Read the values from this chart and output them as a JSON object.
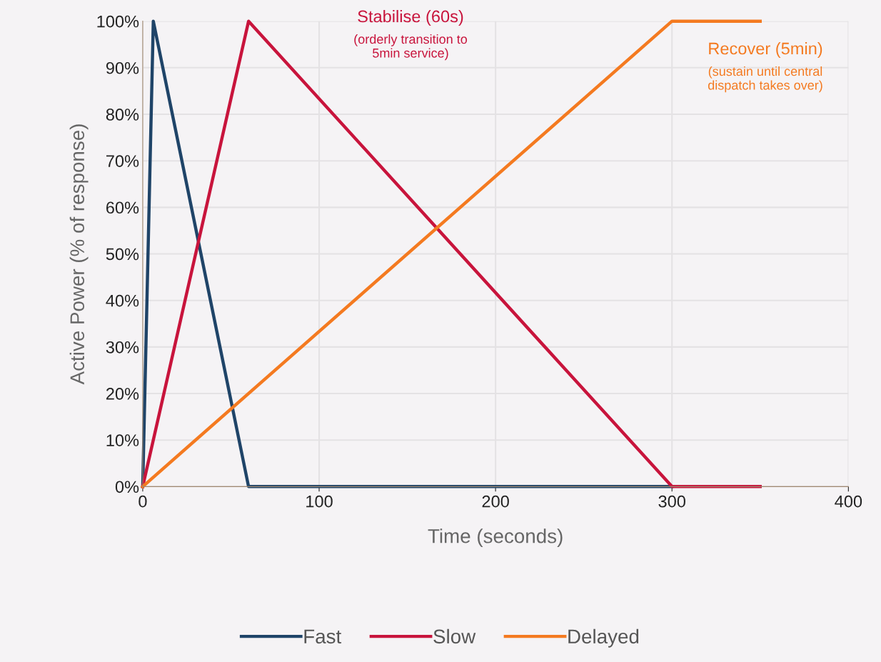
{
  "chart_data": {
    "type": "line",
    "xlabel": "Time (seconds)",
    "ylabel": "Active Power (% of response)",
    "xlim": [
      0,
      400
    ],
    "xticks": [
      0,
      100,
      200,
      300,
      400
    ],
    "ylim": [
      0,
      100
    ],
    "yticks": [
      {
        "value": 0,
        "label": "0%"
      },
      {
        "value": 10,
        "label": "10%"
      },
      {
        "value": 20,
        "label": "20%"
      },
      {
        "value": 30,
        "label": "30%"
      },
      {
        "value": 40,
        "label": "40%"
      },
      {
        "value": 50,
        "label": "50%"
      },
      {
        "value": 60,
        "label": "60%"
      },
      {
        "value": 70,
        "label": "70%"
      },
      {
        "value": 80,
        "label": "80%"
      },
      {
        "value": 90,
        "label": "90%"
      },
      {
        "value": 100,
        "label": "100%"
      }
    ],
    "series": [
      {
        "name": "Fast",
        "color": "#1f4468",
        "x": [
          0,
          6,
          60,
          300
        ],
        "values": [
          0,
          100,
          0,
          0
        ]
      },
      {
        "name": "Slow",
        "color": "#c8143c",
        "x": [
          0,
          60,
          300,
          350
        ],
        "values": [
          0,
          100,
          0,
          0
        ]
      },
      {
        "name": "Delayed",
        "color": "#f47a20",
        "x": [
          0,
          300,
          350
        ],
        "values": [
          0,
          100,
          100
        ]
      }
    ],
    "annotations": [
      "Stabilise (60s)",
      "(orderly transition to\n5min service)",
      "Recover (5min)",
      "(sustain until central\ndispatch takes over)"
    ],
    "grid": true,
    "legend": "bottom",
    "marker": "none",
    "line_style": "solid"
  }
}
